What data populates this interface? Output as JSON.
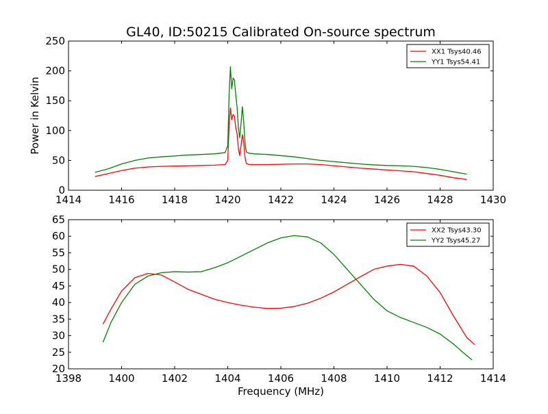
{
  "figure": {
    "title": "GL40, ID:50215 Calibrated On-source spectrum"
  },
  "chart_data": [
    {
      "type": "line",
      "title": "GL40, ID:50215 Calibrated On-source spectrum",
      "xlabel": "",
      "ylabel": "Power in Kelvin",
      "xlim": [
        1414,
        1430
      ],
      "ylim": [
        0,
        250
      ],
      "xticks": [
        1414,
        1416,
        1418,
        1420,
        1422,
        1424,
        1426,
        1428,
        1430
      ],
      "yticks": [
        0,
        50,
        100,
        150,
        200,
        250
      ],
      "grid": false,
      "legend_position": "top-right",
      "series": [
        {
          "name": "XX1 Tsys40.46",
          "color": "#ff0000",
          "x": [
            1415.0,
            1415.5,
            1416.0,
            1416.5,
            1417.0,
            1417.5,
            1418.0,
            1418.5,
            1419.0,
            1419.5,
            1419.9,
            1420.0,
            1420.05,
            1420.1,
            1420.15,
            1420.2,
            1420.25,
            1420.3,
            1420.35,
            1420.4,
            1420.45,
            1420.5,
            1420.55,
            1420.6,
            1420.65,
            1420.7,
            1420.8,
            1421.0,
            1421.5,
            1422.0,
            1422.5,
            1423.0,
            1423.5,
            1424.0,
            1424.5,
            1425.0,
            1425.5,
            1426.0,
            1426.5,
            1427.0,
            1427.5,
            1428.0,
            1428.5,
            1429.0
          ],
          "y": [
            23,
            28,
            33,
            37,
            39,
            40,
            40.5,
            41,
            41.5,
            42,
            43,
            50,
            110,
            138,
            118,
            127,
            124,
            105,
            95,
            70,
            58,
            75,
            93,
            80,
            55,
            45,
            43,
            43,
            43,
            43.5,
            44,
            44,
            43,
            41,
            39,
            37,
            35.5,
            34,
            32.5,
            31,
            28,
            25,
            21,
            18
          ]
        },
        {
          "name": "YY1 Tsys54.41",
          "color": "#008000",
          "x": [
            1415.0,
            1415.5,
            1416.0,
            1416.5,
            1417.0,
            1417.5,
            1418.0,
            1418.5,
            1419.0,
            1419.5,
            1419.9,
            1420.0,
            1420.05,
            1420.1,
            1420.15,
            1420.2,
            1420.25,
            1420.3,
            1420.35,
            1420.4,
            1420.45,
            1420.5,
            1420.55,
            1420.6,
            1420.65,
            1420.7,
            1420.8,
            1421.0,
            1421.5,
            1422.0,
            1422.5,
            1423.0,
            1423.5,
            1424.0,
            1424.5,
            1425.0,
            1425.5,
            1426.0,
            1426.5,
            1427.0,
            1427.5,
            1428.0,
            1428.5,
            1429.0
          ],
          "y": [
            30,
            36,
            44,
            50,
            54,
            56,
            57.5,
            59,
            60,
            61,
            63,
            75,
            160,
            207,
            170,
            188,
            185,
            160,
            140,
            105,
            88,
            112,
            140,
            115,
            80,
            64,
            62,
            61,
            60,
            58,
            56,
            53,
            50,
            48,
            46,
            44,
            42.5,
            41.5,
            41,
            40,
            38,
            35,
            31,
            27
          ]
        }
      ]
    },
    {
      "type": "line",
      "title": "",
      "xlabel": "Frequency (MHz)",
      "ylabel": "",
      "xlim": [
        1398,
        1414
      ],
      "ylim": [
        20,
        65
      ],
      "xticks": [
        1398,
        1400,
        1402,
        1404,
        1406,
        1408,
        1410,
        1412,
        1414
      ],
      "yticks": [
        20,
        25,
        30,
        35,
        40,
        45,
        50,
        55,
        60,
        65
      ],
      "grid": false,
      "legend_position": "top-right",
      "series": [
        {
          "name": "XX2 Tsys43.30",
          "color": "#ff0000",
          "x": [
            1399.3,
            1399.6,
            1400.0,
            1400.5,
            1401.0,
            1401.5,
            1402.0,
            1402.5,
            1403.0,
            1403.5,
            1404.0,
            1404.5,
            1405.0,
            1405.5,
            1406.0,
            1406.5,
            1407.0,
            1407.5,
            1408.0,
            1408.5,
            1409.0,
            1409.5,
            1410.0,
            1410.5,
            1411.0,
            1411.5,
            1412.0,
            1412.5,
            1413.0,
            1413.3
          ],
          "y": [
            33.5,
            38,
            43.5,
            47.5,
            48.8,
            48.3,
            46.2,
            44,
            42.5,
            41,
            40,
            39.2,
            38.6,
            38.2,
            38.3,
            38.8,
            39.8,
            41.3,
            43.2,
            45.5,
            47.8,
            50,
            51,
            51.5,
            51,
            48,
            43,
            36,
            29.5,
            27.3
          ]
        },
        {
          "name": "YY2 Tsys45.27",
          "color": "#008000",
          "x": [
            1399.3,
            1399.6,
            1400.0,
            1400.5,
            1401.0,
            1401.5,
            1402.0,
            1402.5,
            1403.0,
            1403.5,
            1404.0,
            1404.5,
            1405.0,
            1405.5,
            1406.0,
            1406.5,
            1407.0,
            1407.5,
            1408.0,
            1408.5,
            1409.0,
            1409.5,
            1410.0,
            1410.5,
            1411.0,
            1411.5,
            1412.0,
            1412.5,
            1413.0,
            1413.2
          ],
          "y": [
            28,
            34,
            40,
            45.5,
            48,
            49,
            49.3,
            49.2,
            49.3,
            50.5,
            52,
            54,
            56,
            58,
            59.5,
            60.2,
            59.8,
            58,
            54.5,
            50,
            45.5,
            41,
            37.5,
            35.5,
            34,
            32.5,
            30.5,
            27.5,
            24,
            22.7
          ]
        }
      ]
    }
  ]
}
